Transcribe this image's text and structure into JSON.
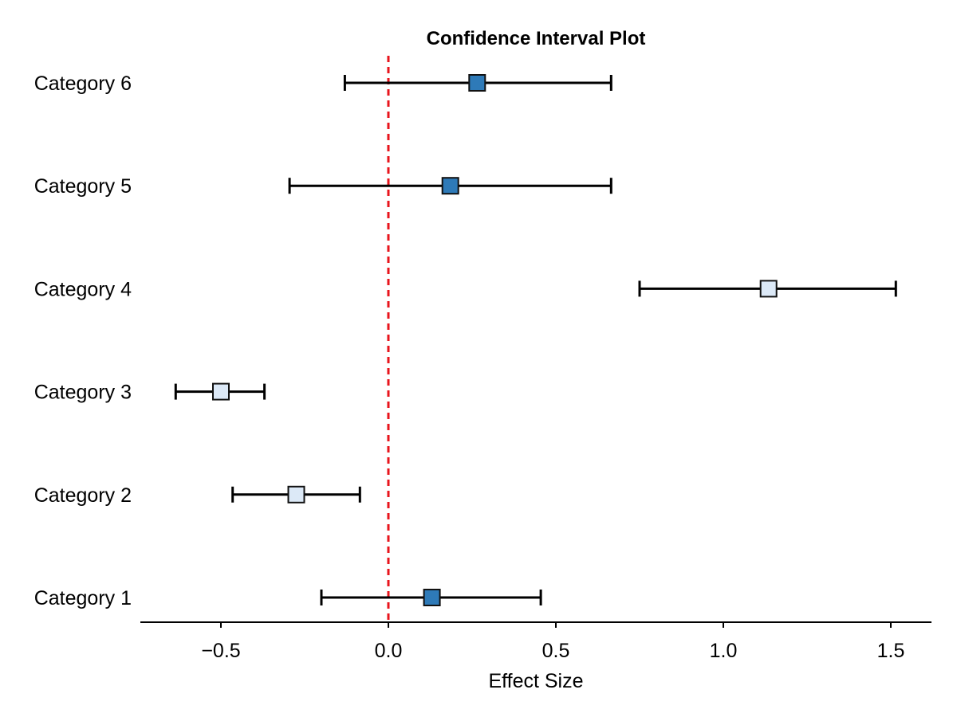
{
  "chart_data": {
    "type": "scatter",
    "subtype": "confidence-interval (forest) plot",
    "title": "Confidence Interval Plot",
    "xlabel": "Effect Size",
    "ylabel": "",
    "xlim": [
      -0.74,
      1.62
    ],
    "xticks": [
      -0.5,
      0.0,
      0.5,
      1.0,
      1.5
    ],
    "xtick_labels": [
      "−0.5",
      "0.0",
      "0.5",
      "1.0",
      "1.5"
    ],
    "categories": [
      "Category 1",
      "Category 2",
      "Category 3",
      "Category 4",
      "Category 5",
      "Category 6"
    ],
    "estimates": [
      0.13,
      -0.275,
      -0.5,
      1.135,
      0.185,
      0.265
    ],
    "lower": [
      -0.2,
      -0.465,
      -0.635,
      0.75,
      -0.295,
      -0.13
    ],
    "upper": [
      0.455,
      -0.085,
      -0.37,
      1.515,
      0.665,
      0.665
    ],
    "marker_colors": [
      "#2e7ab8",
      "#dce9f7",
      "#dce9f7",
      "#dce9f7",
      "#2e7ab8",
      "#2e7ab8"
    ],
    "reference_line": {
      "x": 0.0,
      "color": "#e8141c",
      "style": "dashed"
    },
    "grid": false,
    "legend": "none"
  }
}
